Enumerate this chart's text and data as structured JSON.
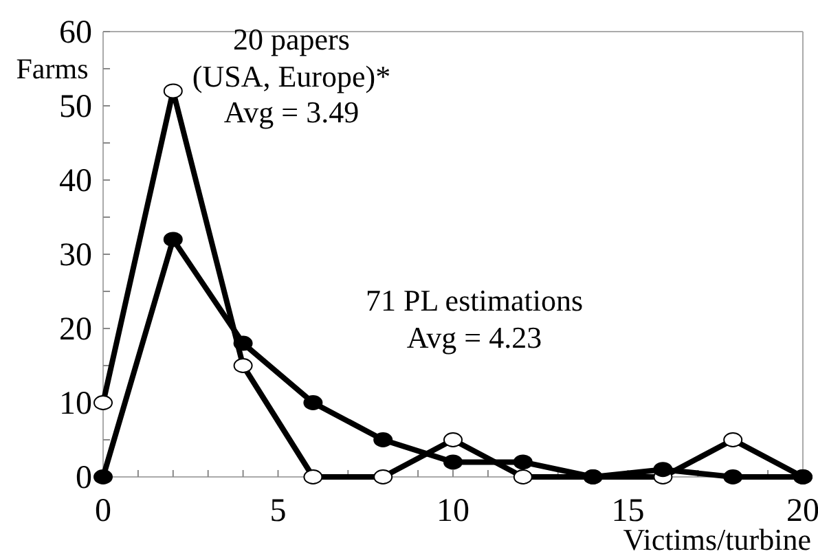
{
  "chart_data": {
    "type": "line",
    "xlabel": "Victims/turbine",
    "ylabel": "Farms",
    "x": [
      0,
      2,
      4,
      6,
      8,
      10,
      12,
      14,
      16,
      18,
      20
    ],
    "series": [
      {
        "color": "#000000",
        "values": [
          10,
          52,
          15,
          0,
          0,
          5,
          0,
          0,
          0,
          5,
          0
        ]
      },
      {
        "color": "#000000",
        "values": [
          0,
          32,
          18,
          10,
          5,
          2,
          2,
          0,
          1,
          0,
          0
        ]
      }
    ],
    "xlim": [
      0,
      20
    ],
    "xticks": [
      0,
      {
        "value": 1,
        "label": null
      },
      {
        "value": 2,
        "label": null
      },
      {
        "value": 3,
        "label": null
      },
      {
        "value": 4,
        "label": null
      },
      5,
      {
        "value": 6,
        "label": null
      },
      {
        "value": 7,
        "label": null
      },
      {
        "value": 8,
        "label": null
      },
      {
        "value": 9,
        "label": null
      },
      10,
      {
        "value": 11,
        "label": null
      },
      {
        "value": 12,
        "label": null
      },
      {
        "value": 13,
        "label": null
      },
      {
        "value": 14,
        "label": null
      },
      15,
      {
        "value": 16,
        "label": null
      },
      {
        "value": 17,
        "label": null
      },
      {
        "value": 18,
        "label": null
      },
      {
        "value": 19,
        "label": null
      },
      20
    ],
    "ylim": [
      0,
      60
    ],
    "yticks": [
      0,
      {
        "value": 5,
        "label": null
      },
      10,
      {
        "value": 15,
        "label": null
      },
      20,
      {
        "value": 25,
        "label": null
      },
      30,
      {
        "value": 35,
        "label": null
      },
      40,
      {
        "value": 45,
        "label": null
      },
      50,
      {
        "value": 55,
        "label": null
      },
      60
    ],
    "marker": "circle",
    "line_style": "solid",
    "grid": false,
    "annotations": [
      "20 papers",
      "(USA, Europe)*",
      "Avg = 3.49",
      "71 PL estimations",
      "Avg = 4.23"
    ]
  }
}
